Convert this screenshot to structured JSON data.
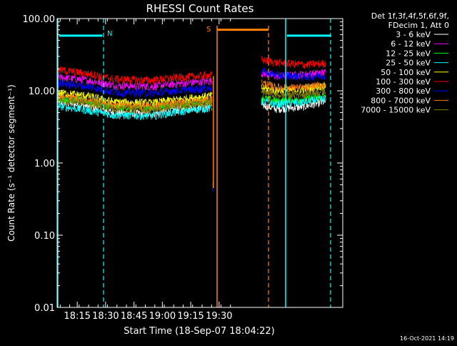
{
  "chart_data": {
    "type": "line",
    "title": "RHESSI Count Rates",
    "xlabel": "Start Time (18-Sep-07 18:04:22)",
    "ylabel": "Count Rate (s⁻¹ detector segment⁻¹)",
    "yscale": "log",
    "ylim": [
      0.01,
      100
    ],
    "x_ticks": [
      "18:15",
      "18:30",
      "18:45",
      "19:00",
      "19:15",
      "19:30"
    ],
    "y_ticks": [
      "100.00",
      "10.00",
      "1.00",
      "0.10",
      "0.01"
    ],
    "legend_header": [
      "Det 1f,3f,4f,5f,6f,9f,",
      "FDecim 1, Att 0"
    ],
    "legend_position": "right",
    "series": [
      {
        "name": "3 - 6 keV",
        "color": "#ffffff",
        "segments": [
          [
            [
              0,
              7.0
            ],
            [
              15,
              6.2
            ],
            [
              30,
              5.0
            ],
            [
              50,
              4.8
            ],
            [
              62,
              5.4
            ],
            [
              75,
              6.0
            ],
            [
              82,
              6.3
            ]
          ],
          [
            [
              108,
              6.4
            ],
            [
              116,
              5.6
            ],
            [
              130,
              6.0
            ],
            [
              142,
              7.1
            ]
          ]
        ]
      },
      {
        "name": "6 - 12 keV",
        "color": "#ff00ff",
        "segments": [
          [
            [
              0,
              15.5
            ],
            [
              15,
              14.2
            ],
            [
              30,
              11.8
            ],
            [
              50,
              11.5
            ],
            [
              62,
              12.5
            ],
            [
              75,
              13.2
            ],
            [
              82,
              13.8
            ]
          ],
          [
            [
              108,
              17.5
            ],
            [
              116,
              16.0
            ],
            [
              130,
              16.8
            ],
            [
              142,
              18.0
            ]
          ]
        ]
      },
      {
        "name": "12 - 25 keV",
        "color": "#00ff00",
        "segments": [
          [
            [
              0,
              8.0
            ],
            [
              15,
              7.3
            ],
            [
              30,
              6.0
            ],
            [
              50,
              5.8
            ],
            [
              62,
              6.4
            ],
            [
              75,
              7.0
            ],
            [
              82,
              7.3
            ]
          ],
          [
            [
              108,
              8.0
            ],
            [
              116,
              7.2
            ],
            [
              130,
              7.6
            ],
            [
              142,
              8.6
            ]
          ]
        ]
      },
      {
        "name": "25 - 50 keV",
        "color": "#00ffff",
        "segments": [
          [
            [
              0,
              6.2
            ],
            [
              15,
              5.4
            ],
            [
              30,
              4.6
            ],
            [
              50,
              4.5
            ],
            [
              62,
              5.0
            ],
            [
              75,
              5.6
            ],
            [
              82,
              5.8
            ]
          ],
          [
            [
              108,
              7.2
            ],
            [
              116,
              6.6
            ],
            [
              130,
              7.0
            ],
            [
              142,
              7.8
            ]
          ]
        ]
      },
      {
        "name": "50 - 100 keV",
        "color": "#ffff00",
        "segments": [
          [
            [
              0,
              9.5
            ],
            [
              15,
              8.6
            ],
            [
              30,
              7.0
            ],
            [
              50,
              6.8
            ],
            [
              62,
              7.5
            ],
            [
              75,
              8.2
            ],
            [
              82,
              8.6
            ]
          ],
          [
            [
              108,
              11.0
            ],
            [
              116,
              10.0
            ],
            [
              130,
              10.5
            ],
            [
              142,
              11.8
            ]
          ]
        ]
      },
      {
        "name": "100 - 300 keV",
        "color": "#ff0000",
        "segments": [
          [
            [
              0,
              19.5
            ],
            [
              15,
              17.5
            ],
            [
              30,
              14.5
            ],
            [
              50,
              14.0
            ],
            [
              62,
              15.2
            ],
            [
              75,
              16.0
            ],
            [
              82,
              16.6
            ]
          ],
          [
            [
              108,
              27.0
            ],
            [
              116,
              24.5
            ],
            [
              130,
              23.0
            ],
            [
              142,
              24.0
            ]
          ]
        ]
      },
      {
        "name": "300 - 800 keV",
        "color": "#0000ff",
        "segments": [
          [
            [
              0,
              12.8
            ],
            [
              15,
              11.6
            ],
            [
              30,
              9.6
            ],
            [
              50,
              9.3
            ],
            [
              62,
              10.0
            ],
            [
              75,
              10.6
            ],
            [
              82,
              11.0
            ]
          ],
          [
            [
              108,
              19.0
            ],
            [
              116,
              16.5
            ],
            [
              130,
              15.5
            ],
            [
              142,
              16.5
            ]
          ]
        ]
      },
      {
        "name": "800 - 7000 keV",
        "color": "#ff8000",
        "segments": [
          [
            [
              0,
              8.4
            ],
            [
              15,
              7.6
            ],
            [
              30,
              6.3
            ],
            [
              50,
              6.1
            ],
            [
              62,
              6.7
            ],
            [
              75,
              7.2
            ],
            [
              82,
              7.5
            ]
          ],
          [
            [
              108,
              13.0
            ],
            [
              116,
              11.2
            ],
            [
              130,
              11.0
            ],
            [
              142,
              12.2
            ]
          ]
        ]
      },
      {
        "name": "7000 - 15000 keV",
        "color": "#808000",
        "segments": [
          [
            [
              0,
              7.6
            ],
            [
              15,
              6.9
            ],
            [
              30,
              5.7
            ],
            [
              50,
              5.5
            ],
            [
              62,
              6.1
            ],
            [
              75,
              6.6
            ],
            [
              82,
              6.9
            ]
          ],
          [
            [
              108,
              9.8
            ],
            [
              116,
              8.8
            ],
            [
              130,
              9.0
            ],
            [
              142,
              10.0
            ]
          ]
        ]
      }
    ],
    "markers": [
      {
        "label": "N",
        "color": "#00ffff",
        "bar_level": 58
      },
      {
        "label": "",
        "color": "#00ffff",
        "bar_level": 58
      },
      {
        "label": "S",
        "color": "#ff8000",
        "bar_level": 70
      }
    ],
    "timestamp": "16-Oct-2021 14:19"
  }
}
